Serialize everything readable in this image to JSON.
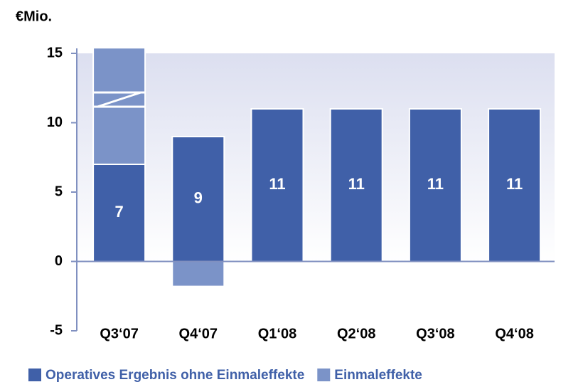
{
  "chart_data": {
    "type": "bar",
    "unit_label": "€Mio.",
    "categories": [
      "Q3‘07",
      "Q4‘07",
      "Q1‘08",
      "Q2‘08",
      "Q3‘08",
      "Q4‘08"
    ],
    "series": [
      {
        "name": "Operatives Ergebnis ohne Einmaleffekte",
        "color": "#4060a8",
        "values": [
          7,
          9,
          11,
          11,
          11,
          11
        ]
      },
      {
        "name": "Einmaleffekte",
        "color": "#7b93c8",
        "values": [
          8.4,
          -1.8,
          null,
          null,
          null,
          null
        ]
      }
    ],
    "ylim": [
      -5,
      15
    ],
    "yticks": [
      -5,
      0,
      5,
      10,
      15
    ]
  }
}
